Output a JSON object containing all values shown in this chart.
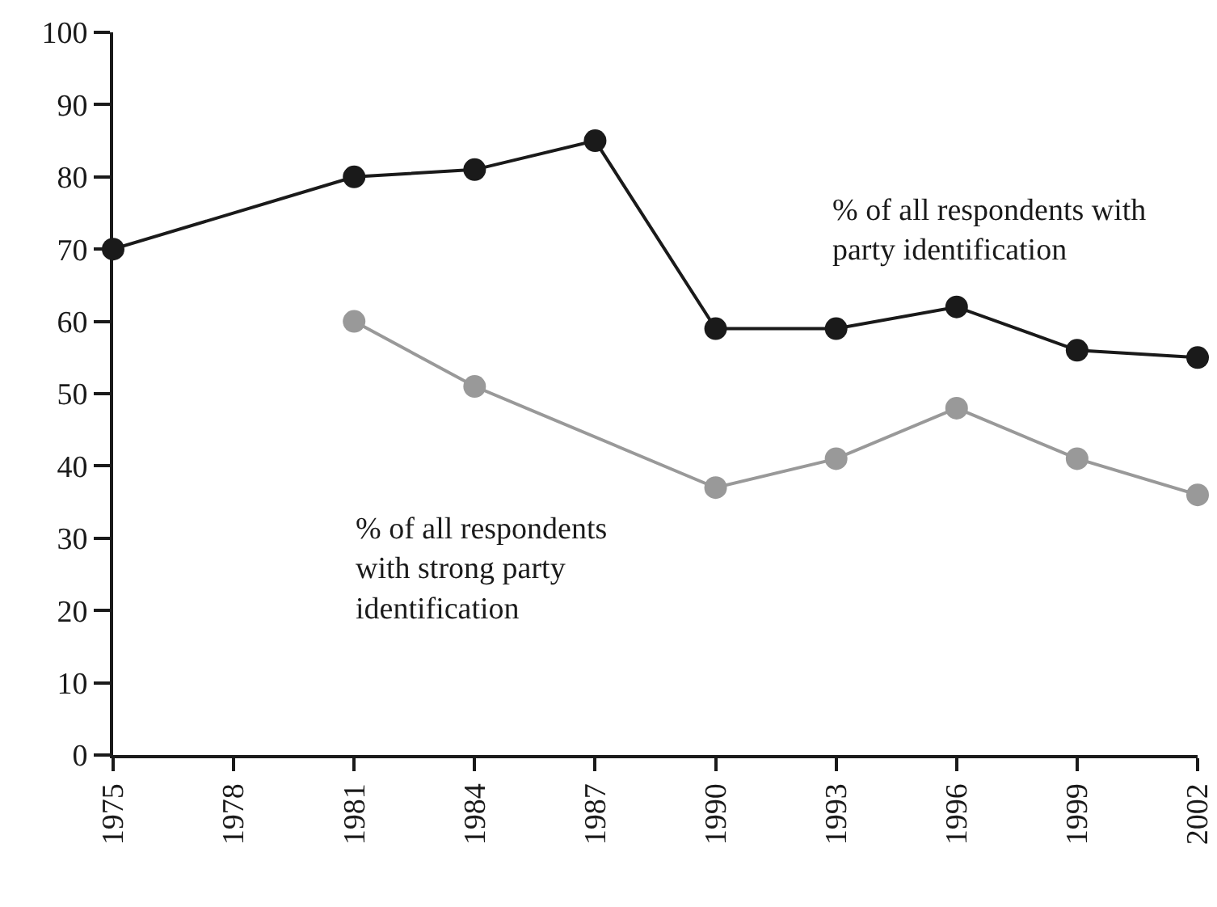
{
  "chart_data": {
    "type": "line",
    "x": [
      1975,
      1981,
      1984,
      1987,
      1990,
      1993,
      1996,
      1999,
      2002
    ],
    "series": [
      {
        "name": "% of all respondents with party identification",
        "color": "#1a1a1a",
        "values": [
          70,
          80,
          81,
          85,
          59,
          59,
          62,
          56,
          55
        ]
      },
      {
        "name": "% of all respondents with strong party identification",
        "color": "#999999",
        "values": [
          null,
          60,
          51,
          null,
          37,
          41,
          48,
          41,
          36
        ]
      }
    ],
    "xlim": [
      1975,
      2002
    ],
    "xticks": [
      1975,
      1978,
      1981,
      1984,
      1987,
      1990,
      1993,
      1996,
      1999,
      2002
    ],
    "ylim": [
      0,
      100
    ],
    "yticks": [
      0,
      10,
      20,
      30,
      40,
      50,
      60,
      70,
      80,
      90,
      100
    ],
    "grid": false,
    "legend": false,
    "marker": "circle",
    "line_style": "solid"
  }
}
